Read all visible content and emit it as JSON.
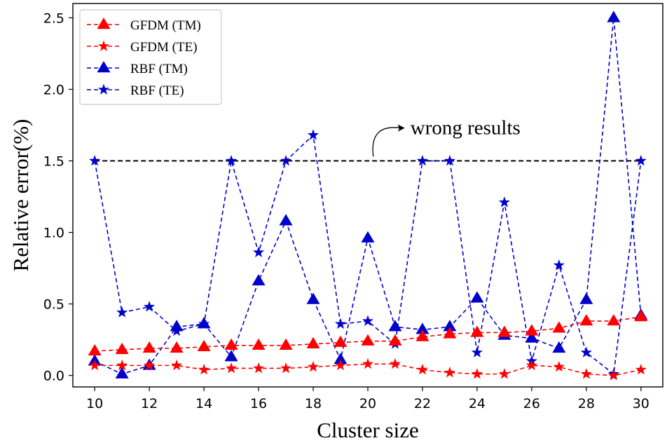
{
  "chart_data": {
    "type": "line",
    "xlabel": "Cluster size",
    "ylabel": "Relative error(%)",
    "xlim": [
      9.2,
      30.8
    ],
    "ylim": [
      -0.08,
      2.6
    ],
    "xticks": [
      10,
      12,
      14,
      16,
      18,
      20,
      22,
      24,
      26,
      28,
      30
    ],
    "yticks": [
      0.0,
      0.5,
      1.0,
      1.5,
      2.0,
      2.5
    ],
    "ytick_labels": [
      "0.0",
      "0.5",
      "1.0",
      "1.5",
      "2.0",
      "2.5"
    ],
    "x": [
      10,
      11,
      12,
      13,
      14,
      15,
      16,
      17,
      18,
      19,
      20,
      21,
      22,
      23,
      24,
      25,
      26,
      27,
      28,
      29,
      30
    ],
    "legend_position": "top-left",
    "series": [
      {
        "name": "GFDM (TM)",
        "color": "#ff0000",
        "marker": "triangle",
        "values": [
          0.17,
          0.18,
          0.19,
          0.19,
          0.2,
          0.21,
          0.21,
          0.21,
          0.22,
          0.23,
          0.24,
          0.24,
          0.27,
          0.29,
          0.3,
          0.3,
          0.31,
          0.33,
          0.38,
          0.38,
          0.41
        ]
      },
      {
        "name": "GFDM (TE)",
        "color": "#ff0000",
        "marker": "star",
        "values": [
          0.07,
          0.07,
          0.07,
          0.07,
          0.04,
          0.05,
          0.05,
          0.05,
          0.06,
          0.07,
          0.08,
          0.08,
          0.04,
          0.02,
          0.01,
          0.01,
          0.07,
          0.06,
          0.01,
          0.0,
          0.04
        ]
      },
      {
        "name": "RBF (TM)",
        "color": "#0000cc",
        "marker": "triangle",
        "values": [
          0.1,
          0.01,
          0.07,
          0.34,
          0.36,
          0.13,
          0.66,
          1.08,
          0.53,
          0.11,
          0.96,
          0.34,
          0.32,
          0.34,
          0.54,
          0.28,
          0.26,
          0.19,
          0.53,
          2.5,
          0.42
        ]
      },
      {
        "name": "RBF (TE)",
        "color": "#0000cc",
        "marker": "star",
        "values": [
          1.5,
          0.44,
          0.48,
          0.31,
          0.36,
          1.5,
          0.86,
          1.5,
          1.68,
          0.36,
          0.38,
          0.22,
          1.5,
          1.5,
          0.16,
          1.21,
          0.1,
          0.77,
          0.16,
          0.01,
          1.5
        ]
      }
    ],
    "reference_line": {
      "y": 1.5,
      "x_from": 10,
      "x_to": 30,
      "color": "#000000"
    },
    "annotation": {
      "text": "wrong results",
      "arrow_from": [
        20.2,
        1.53
      ],
      "arrow_to": [
        21.2,
        1.73
      ]
    }
  }
}
